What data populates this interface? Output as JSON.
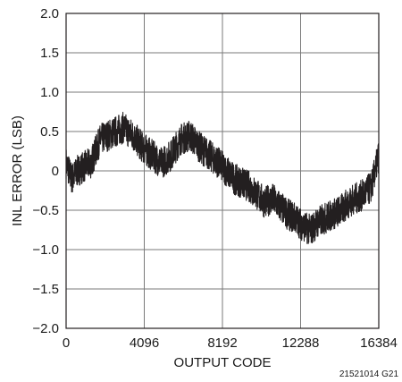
{
  "chart_data": {
    "type": "line",
    "xlabel": "OUTPUT CODE",
    "ylabel": "INL ERROR (LSB)",
    "xlim": [
      0,
      16384
    ],
    "ylim": [
      -2.0,
      2.0
    ],
    "x_ticks": [
      "0",
      "4096",
      "8192",
      "12288",
      "16384"
    ],
    "y_ticks": [
      "2.0",
      "1.5",
      "1.0",
      "0.5",
      "0",
      "−0.5",
      "−1.0",
      "−1.5",
      "−2.0"
    ],
    "grid": true,
    "figure_id": "21521014 G21",
    "series": [
      {
        "color": "#231f20",
        "noise_band": 0.2,
        "x": [
          0,
          300,
          600,
          900,
          1300,
          1800,
          2200,
          2600,
          3000,
          3500,
          4000,
          4500,
          5000,
          5500,
          6000,
          6500,
          7000,
          7500,
          8000,
          8400,
          8800,
          9200,
          9600,
          10000,
          10400,
          10800,
          11200,
          11600,
          12000,
          12400,
          12800,
          13200,
          13600,
          14000,
          14400,
          14800,
          15200,
          15600,
          16000,
          16384
        ],
        "values": [
          0.1,
          -0.1,
          0.0,
          0.05,
          0.1,
          0.4,
          0.45,
          0.5,
          0.55,
          0.45,
          0.3,
          0.2,
          0.1,
          0.2,
          0.4,
          0.45,
          0.3,
          0.2,
          0.1,
          0.0,
          -0.1,
          -0.15,
          -0.2,
          -0.3,
          -0.4,
          -0.35,
          -0.45,
          -0.55,
          -0.6,
          -0.7,
          -0.75,
          -0.65,
          -0.6,
          -0.55,
          -0.5,
          -0.4,
          -0.35,
          -0.3,
          -0.2,
          0.2
        ]
      }
    ]
  }
}
